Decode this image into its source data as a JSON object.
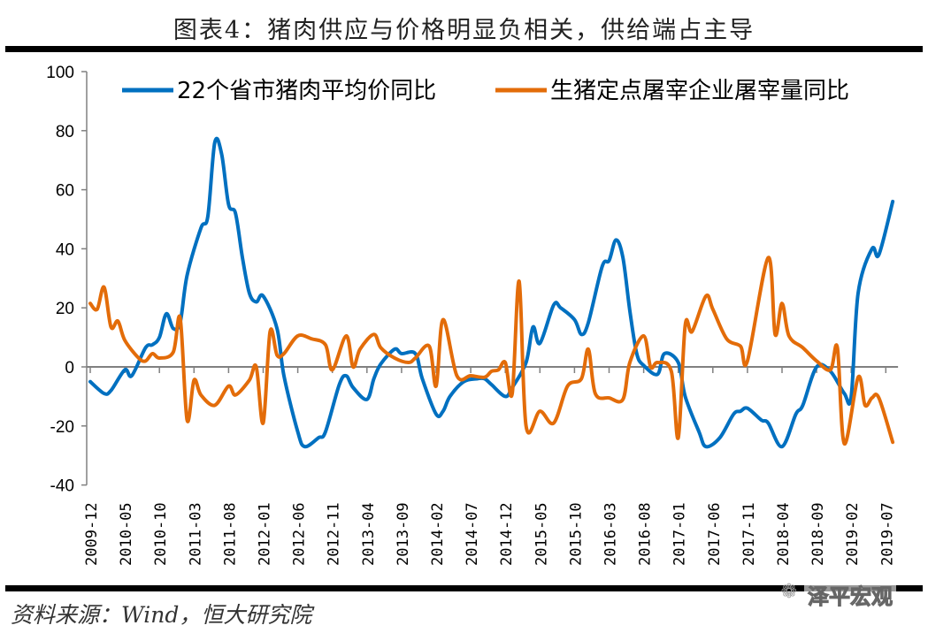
{
  "title": "图表4：猪肉供应与价格明显负相关，供给端占主导",
  "source": "资料来源：Wind，恒大研究院",
  "watermark": "泽平宏观",
  "chart_data": {
    "type": "line",
    "title": "图表4：猪肉供应与价格明显负相关，供给端占主导",
    "xlabel": "",
    "ylabel": "",
    "ylim": [
      -40,
      100
    ],
    "yticks": [
      100,
      80,
      60,
      40,
      20,
      0,
      -20,
      -40
    ],
    "xlim": [
      "2009-12",
      "2019-08"
    ],
    "xticks": [
      "2009-12",
      "2010-05",
      "2010-10",
      "2011-03",
      "2011-08",
      "2012-01",
      "2012-06",
      "2012-11",
      "2013-04",
      "2013-09",
      "2014-02",
      "2014-07",
      "2014-12",
      "2015-05",
      "2015-10",
      "2016-03",
      "2016-08",
      "2017-01",
      "2017-06",
      "2017-11",
      "2018-04",
      "2018-09",
      "2019-02",
      "2019-07"
    ],
    "grid": false,
    "legend_position": "top",
    "series": [
      {
        "name": "22个省市猪肉平均价同比",
        "color": "#0070C0",
        "points": [
          [
            "2009-12",
            -5
          ],
          [
            "2010-02",
            -9
          ],
          [
            "2010-03",
            -8
          ],
          [
            "2010-05",
            -1
          ],
          [
            "2010-06",
            -3
          ],
          [
            "2010-08",
            6.5
          ],
          [
            "2010-09",
            7.5
          ],
          [
            "2010-10",
            10
          ],
          [
            "2010-11",
            18
          ],
          [
            "2010-12",
            13
          ],
          [
            "2011-01",
            15
          ],
          [
            "2011-02",
            31
          ],
          [
            "2011-04",
            47
          ],
          [
            "2011-05",
            51
          ],
          [
            "2011-06",
            76
          ],
          [
            "2011-07",
            72
          ],
          [
            "2011-08",
            55
          ],
          [
            "2011-09",
            52
          ],
          [
            "2011-10",
            37
          ],
          [
            "2011-11",
            25
          ],
          [
            "2011-12",
            22
          ],
          [
            "2012-01",
            24
          ],
          [
            "2012-03",
            13
          ],
          [
            "2012-04",
            -3
          ],
          [
            "2012-06",
            -22
          ],
          [
            "2012-07",
            -27
          ],
          [
            "2012-09",
            -24
          ],
          [
            "2012-10",
            -22
          ],
          [
            "2012-12",
            -6
          ],
          [
            "2013-01",
            -3
          ],
          [
            "2013-02",
            -7
          ],
          [
            "2013-04",
            -11
          ],
          [
            "2013-05",
            -4
          ],
          [
            "2013-06",
            1
          ],
          [
            "2013-08",
            6
          ],
          [
            "2013-09",
            4.5
          ],
          [
            "2013-11",
            4.5
          ],
          [
            "2013-12",
            -4
          ],
          [
            "2014-02",
            -16
          ],
          [
            "2014-03",
            -15
          ],
          [
            "2014-04",
            -10
          ],
          [
            "2014-06",
            -5
          ],
          [
            "2014-08",
            -4
          ],
          [
            "2014-09",
            -4
          ],
          [
            "2014-10",
            -6
          ],
          [
            "2014-12",
            -10
          ],
          [
            "2015-01",
            -7
          ],
          [
            "2015-03",
            1.5
          ],
          [
            "2015-04",
            13.5
          ],
          [
            "2015-05",
            8
          ],
          [
            "2015-07",
            21
          ],
          [
            "2015-08",
            20
          ],
          [
            "2015-10",
            16
          ],
          [
            "2015-11",
            11
          ],
          [
            "2015-12",
            15
          ],
          [
            "2016-02",
            34
          ],
          [
            "2016-03",
            36
          ],
          [
            "2016-04",
            43
          ],
          [
            "2016-05",
            37
          ],
          [
            "2016-06",
            19
          ],
          [
            "2016-07",
            4.5
          ],
          [
            "2016-08",
            0.5
          ],
          [
            "2016-10",
            -2.5
          ],
          [
            "2016-11",
            4.5
          ],
          [
            "2017-01",
            1.5
          ],
          [
            "2017-02",
            -10
          ],
          [
            "2017-04",
            -22
          ],
          [
            "2017-05",
            -27
          ],
          [
            "2017-07",
            -24
          ],
          [
            "2017-09",
            -16
          ],
          [
            "2017-10",
            -15
          ],
          [
            "2017-11",
            -14
          ],
          [
            "2018-01",
            -18
          ],
          [
            "2018-02",
            -19
          ],
          [
            "2018-04",
            -27
          ],
          [
            "2018-06",
            -16
          ],
          [
            "2018-07",
            -13
          ],
          [
            "2018-09",
            0
          ],
          [
            "2018-11",
            -1.5
          ],
          [
            "2019-01",
            -9
          ],
          [
            "2019-02",
            -10
          ],
          [
            "2019-03",
            25
          ],
          [
            "2019-05",
            40
          ],
          [
            "2019-06",
            38
          ],
          [
            "2019-08",
            56
          ]
        ]
      },
      {
        "name": "生猪定点屠宰企业屠宰量同比",
        "color": "#E36C09",
        "points": [
          [
            "2009-12",
            21.5
          ],
          [
            "2010-01",
            19.5
          ],
          [
            "2010-02",
            27
          ],
          [
            "2010-03",
            13.5
          ],
          [
            "2010-04",
            15.5
          ],
          [
            "2010-05",
            9
          ],
          [
            "2010-07",
            3
          ],
          [
            "2010-08",
            2
          ],
          [
            "2010-09",
            4.5
          ],
          [
            "2010-10",
            3
          ],
          [
            "2010-12",
            5
          ],
          [
            "2011-01",
            16.5
          ],
          [
            "2011-02",
            -18
          ],
          [
            "2011-03",
            -4.5
          ],
          [
            "2011-04",
            -9.5
          ],
          [
            "2011-06",
            -13
          ],
          [
            "2011-08",
            -6.5
          ],
          [
            "2011-09",
            -9.5
          ],
          [
            "2011-11",
            -4.5
          ],
          [
            "2011-12",
            0
          ],
          [
            "2012-01",
            -19
          ],
          [
            "2012-02",
            12
          ],
          [
            "2012-03",
            4
          ],
          [
            "2012-04",
            4.5
          ],
          [
            "2012-06",
            10.5
          ],
          [
            "2012-08",
            9.5
          ],
          [
            "2012-10",
            7.5
          ],
          [
            "2012-11",
            -1
          ],
          [
            "2013-01",
            10.5
          ],
          [
            "2013-02",
            0
          ],
          [
            "2013-03",
            6
          ],
          [
            "2013-05",
            11
          ],
          [
            "2013-06",
            6.5
          ],
          [
            "2013-08",
            3
          ],
          [
            "2013-10",
            1.5
          ],
          [
            "2013-11",
            3
          ],
          [
            "2014-01",
            7
          ],
          [
            "2014-02",
            -6.5
          ],
          [
            "2014-03",
            16
          ],
          [
            "2014-05",
            -3
          ],
          [
            "2014-07",
            -3
          ],
          [
            "2014-09",
            -3.5
          ],
          [
            "2014-10",
            -1.5
          ],
          [
            "2014-11",
            -1
          ],
          [
            "2014-12",
            1.5
          ],
          [
            "2015-01",
            -9
          ],
          [
            "2015-02",
            29
          ],
          [
            "2015-03",
            -20
          ],
          [
            "2015-05",
            -15
          ],
          [
            "2015-07",
            -19
          ],
          [
            "2015-09",
            -6.5
          ],
          [
            "2015-11",
            -4
          ],
          [
            "2015-12",
            6
          ],
          [
            "2016-01",
            -9
          ],
          [
            "2016-03",
            -10.5
          ],
          [
            "2016-05",
            -11
          ],
          [
            "2016-06",
            1.5
          ],
          [
            "2016-08",
            10.5
          ],
          [
            "2016-09",
            0
          ],
          [
            "2016-10",
            1.5
          ],
          [
            "2016-12",
            -1.5
          ],
          [
            "2017-01",
            -24
          ],
          [
            "2017-02",
            14
          ],
          [
            "2017-03",
            12
          ],
          [
            "2017-05",
            24
          ],
          [
            "2017-06",
            19.5
          ],
          [
            "2017-08",
            9.5
          ],
          [
            "2017-10",
            7
          ],
          [
            "2017-11",
            2
          ],
          [
            "2018-02",
            37
          ],
          [
            "2018-03",
            11
          ],
          [
            "2018-04",
            21.5
          ],
          [
            "2018-05",
            10.5
          ],
          [
            "2018-07",
            6.5
          ],
          [
            "2018-09",
            2
          ],
          [
            "2018-11",
            -1
          ],
          [
            "2018-12",
            6.5
          ],
          [
            "2019-01",
            -26
          ],
          [
            "2019-03",
            -3.5
          ],
          [
            "2019-04",
            -13
          ],
          [
            "2019-05",
            -10.5
          ],
          [
            "2019-06",
            -10.5
          ],
          [
            "2019-08",
            -25.5
          ]
        ]
      }
    ]
  }
}
